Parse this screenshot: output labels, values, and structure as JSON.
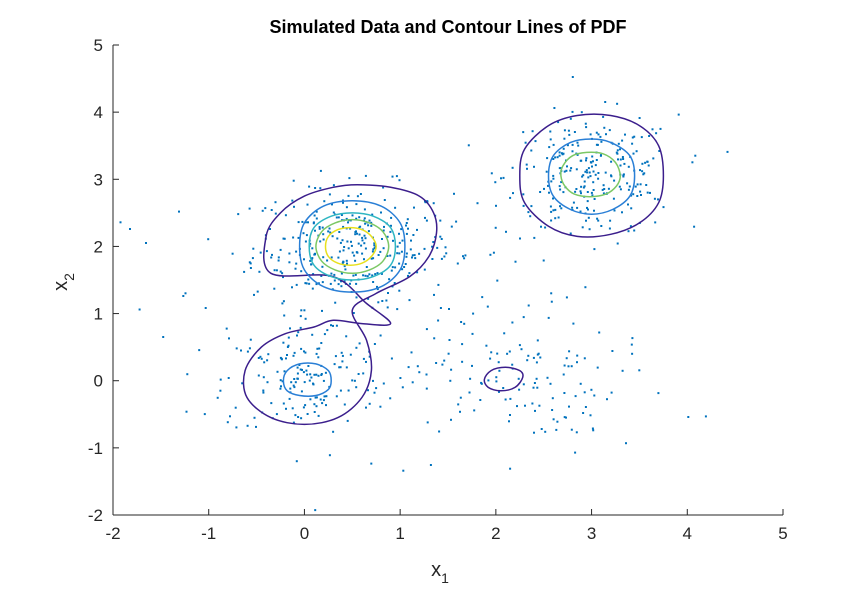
{
  "chart_data": {
    "type": "scatter",
    "title": "Simulated Data and Contour Lines of PDF",
    "xlabel": {
      "base": "x",
      "sub": "1"
    },
    "ylabel": {
      "base": "x",
      "sub": "2"
    },
    "xlim": [
      -2,
      5
    ],
    "ylim": [
      -2,
      5
    ],
    "xticks": [
      -2,
      -1,
      0,
      1,
      2,
      3,
      4,
      5
    ],
    "yticks": [
      -2,
      -1,
      0,
      1,
      2,
      3,
      4,
      5
    ],
    "grid": false,
    "legend": "none",
    "colors": {
      "axis": "#262626",
      "points": "#0072BD",
      "level_1": "#3B1E8C",
      "level_2": "#2A7FD6",
      "level_3": "#2FB6C2",
      "level_4": "#7CC865",
      "level_5": "#E8E01E"
    },
    "point_clusters": [
      {
        "mean": [
          0.5,
          2.0
        ],
        "std": [
          0.52,
          0.45
        ],
        "count": 320
      },
      {
        "mean": [
          3.0,
          3.05
        ],
        "std": [
          0.45,
          0.45
        ],
        "count": 260
      },
      {
        "mean": [
          0.0,
          0.0
        ],
        "std": [
          0.42,
          0.42
        ],
        "count": 140
      },
      {
        "mean": [
          2.2,
          0.0
        ],
        "std": [
          0.55,
          0.4
        ],
        "count": 90
      },
      {
        "mean": [
          1.0,
          0.6
        ],
        "std": [
          1.4,
          1.2
        ],
        "count": 140
      }
    ],
    "contours": [
      {
        "level": 1,
        "color": "#3B1E8C",
        "points": [
          [
            0.9,
            0.85
          ],
          [
            0.65,
            1.15
          ],
          [
            0.3,
            1.55
          ],
          [
            -0.35,
            1.6
          ],
          [
            -0.4,
            2.15
          ],
          [
            -0.25,
            2.5
          ],
          [
            0.0,
            2.75
          ],
          [
            0.3,
            2.88
          ],
          [
            0.55,
            2.92
          ],
          [
            0.9,
            2.88
          ],
          [
            1.2,
            2.75
          ],
          [
            1.35,
            2.5
          ],
          [
            1.38,
            2.2
          ],
          [
            1.3,
            1.85
          ],
          [
            1.1,
            1.55
          ],
          [
            0.75,
            1.3
          ],
          [
            0.5,
            1.05
          ],
          [
            0.65,
            0.6
          ],
          [
            0.7,
            0.15
          ],
          [
            0.6,
            -0.25
          ],
          [
            0.35,
            -0.55
          ],
          [
            0.0,
            -0.65
          ],
          [
            -0.35,
            -0.55
          ],
          [
            -0.6,
            -0.25
          ],
          [
            -0.62,
            0.15
          ],
          [
            -0.45,
            0.5
          ],
          [
            -0.2,
            0.7
          ],
          [
            0.1,
            0.8
          ],
          [
            0.3,
            0.9
          ],
          [
            0.6,
            0.85
          ],
          [
            0.9,
            0.85
          ]
        ],
        "closed": true
      },
      {
        "level": 1,
        "color": "#3B1E8C",
        "points": [
          [
            3.75,
            3.05
          ],
          [
            3.7,
            3.5
          ],
          [
            3.5,
            3.8
          ],
          [
            3.2,
            3.95
          ],
          [
            2.85,
            3.95
          ],
          [
            2.55,
            3.8
          ],
          [
            2.3,
            3.45
          ],
          [
            2.25,
            3.05
          ],
          [
            2.3,
            2.65
          ],
          [
            2.55,
            2.3
          ],
          [
            2.85,
            2.15
          ],
          [
            3.2,
            2.18
          ],
          [
            3.5,
            2.35
          ],
          [
            3.7,
            2.65
          ],
          [
            3.75,
            3.05
          ]
        ],
        "closed": true
      },
      {
        "level": 1,
        "color": "#3B1E8C",
        "points": [
          [
            2.28,
            0.05
          ],
          [
            2.25,
            0.15
          ],
          [
            2.1,
            0.2
          ],
          [
            1.95,
            0.15
          ],
          [
            1.88,
            0.02
          ],
          [
            1.92,
            -0.1
          ],
          [
            2.05,
            -0.15
          ],
          [
            2.2,
            -0.1
          ],
          [
            2.28,
            0.05
          ]
        ],
        "closed": true
      },
      {
        "level": 2,
        "color": "#2A7FD6",
        "points": [
          [
            1.05,
            2.0
          ],
          [
            1.0,
            2.35
          ],
          [
            0.8,
            2.6
          ],
          [
            0.5,
            2.68
          ],
          [
            0.2,
            2.6
          ],
          [
            0.0,
            2.35
          ],
          [
            -0.05,
            2.0
          ],
          [
            0.0,
            1.65
          ],
          [
            0.2,
            1.4
          ],
          [
            0.5,
            1.32
          ],
          [
            0.8,
            1.4
          ],
          [
            1.0,
            1.65
          ],
          [
            1.05,
            2.0
          ]
        ],
        "closed": true
      },
      {
        "level": 2,
        "color": "#2A7FD6",
        "points": [
          [
            3.45,
            3.05
          ],
          [
            3.4,
            3.35
          ],
          [
            3.2,
            3.55
          ],
          [
            3.0,
            3.6
          ],
          [
            2.78,
            3.55
          ],
          [
            2.6,
            3.35
          ],
          [
            2.55,
            3.05
          ],
          [
            2.6,
            2.75
          ],
          [
            2.78,
            2.55
          ],
          [
            3.0,
            2.48
          ],
          [
            3.22,
            2.55
          ],
          [
            3.4,
            2.75
          ],
          [
            3.45,
            3.05
          ]
        ],
        "closed": true
      },
      {
        "level": 2,
        "color": "#2A7FD6",
        "points": [
          [
            0.28,
            0.0
          ],
          [
            0.25,
            0.15
          ],
          [
            0.12,
            0.25
          ],
          [
            -0.05,
            0.25
          ],
          [
            -0.18,
            0.15
          ],
          [
            -0.22,
            0.0
          ],
          [
            -0.18,
            -0.15
          ],
          [
            -0.05,
            -0.22
          ],
          [
            0.12,
            -0.22
          ],
          [
            0.25,
            -0.13
          ],
          [
            0.28,
            0.0
          ]
        ],
        "closed": true
      },
      {
        "level": 3,
        "color": "#2FB6C2",
        "points": [
          [
            0.95,
            2.0
          ],
          [
            0.9,
            2.28
          ],
          [
            0.72,
            2.45
          ],
          [
            0.5,
            2.5
          ],
          [
            0.28,
            2.45
          ],
          [
            0.1,
            2.28
          ],
          [
            0.05,
            2.0
          ],
          [
            0.1,
            1.72
          ],
          [
            0.28,
            1.55
          ],
          [
            0.5,
            1.5
          ],
          [
            0.72,
            1.55
          ],
          [
            0.9,
            1.72
          ],
          [
            0.95,
            2.0
          ]
        ],
        "closed": true
      },
      {
        "level": 4,
        "color": "#7CC865",
        "points": [
          [
            3.3,
            3.05
          ],
          [
            3.25,
            3.25
          ],
          [
            3.12,
            3.38
          ],
          [
            2.95,
            3.4
          ],
          [
            2.8,
            3.35
          ],
          [
            2.7,
            3.2
          ],
          [
            2.68,
            3.05
          ],
          [
            2.72,
            2.9
          ],
          [
            2.82,
            2.78
          ],
          [
            2.98,
            2.74
          ],
          [
            3.15,
            2.78
          ],
          [
            3.26,
            2.9
          ],
          [
            3.3,
            3.05
          ]
        ],
        "closed": true
      },
      {
        "level": 4,
        "color": "#7CC865",
        "points": [
          [
            0.88,
            2.0
          ],
          [
            0.82,
            2.22
          ],
          [
            0.68,
            2.35
          ],
          [
            0.5,
            2.4
          ],
          [
            0.32,
            2.35
          ],
          [
            0.18,
            2.22
          ],
          [
            0.12,
            2.0
          ],
          [
            0.18,
            1.78
          ],
          [
            0.32,
            1.65
          ],
          [
            0.5,
            1.6
          ],
          [
            0.68,
            1.65
          ],
          [
            0.82,
            1.78
          ],
          [
            0.88,
            2.0
          ]
        ],
        "closed": true
      },
      {
        "level": 5,
        "color": "#E8E01E",
        "points": [
          [
            0.75,
            2.0
          ],
          [
            0.7,
            2.15
          ],
          [
            0.6,
            2.25
          ],
          [
            0.48,
            2.28
          ],
          [
            0.35,
            2.25
          ],
          [
            0.25,
            2.15
          ],
          [
            0.22,
            2.0
          ],
          [
            0.25,
            1.85
          ],
          [
            0.35,
            1.75
          ],
          [
            0.48,
            1.72
          ],
          [
            0.6,
            1.75
          ],
          [
            0.7,
            1.85
          ],
          [
            0.75,
            2.0
          ]
        ],
        "closed": true
      }
    ]
  }
}
